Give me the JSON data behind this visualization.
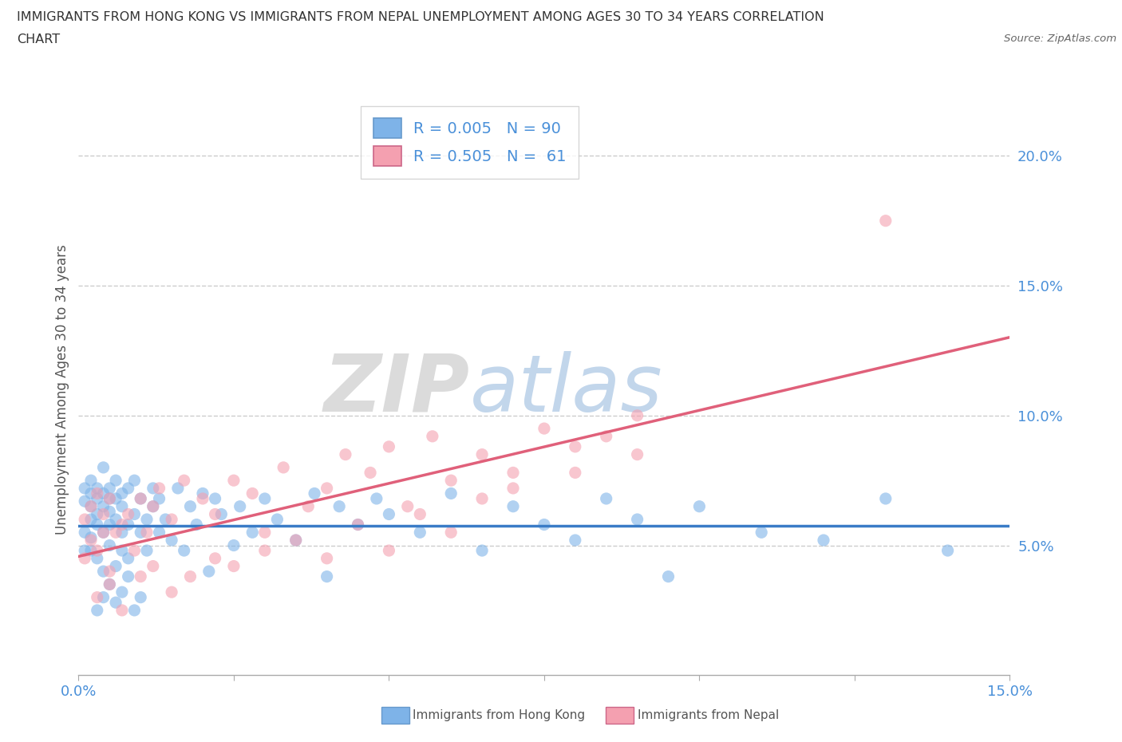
{
  "title_line1": "IMMIGRANTS FROM HONG KONG VS IMMIGRANTS FROM NEPAL UNEMPLOYMENT AMONG AGES 30 TO 34 YEARS CORRELATION",
  "title_line2": "CHART",
  "source_text": "Source: ZipAtlas.com",
  "ylabel": "Unemployment Among Ages 30 to 34 years",
  "xlim": [
    0.0,
    0.15
  ],
  "ylim": [
    0.0,
    0.22
  ],
  "yticks": [
    0.05,
    0.1,
    0.15,
    0.2
  ],
  "xtick_positions": [
    0.0,
    0.025,
    0.05,
    0.075,
    0.1,
    0.125,
    0.15
  ],
  "hk_color": "#7eb3e8",
  "nepal_color": "#f4a0b0",
  "hk_line_color": "#3a7cc7",
  "nepal_line_color": "#e0607a",
  "hk_R": 0.005,
  "hk_N": 90,
  "nepal_R": 0.505,
  "nepal_N": 61,
  "watermark_zip": "ZIP",
  "watermark_atlas": "atlas",
  "legend_label_hk": "Immigrants from Hong Kong",
  "legend_label_nepal": "Immigrants from Nepal",
  "hk_scatter_x": [
    0.001,
    0.001,
    0.001,
    0.001,
    0.002,
    0.002,
    0.002,
    0.002,
    0.002,
    0.002,
    0.003,
    0.003,
    0.003,
    0.003,
    0.003,
    0.004,
    0.004,
    0.004,
    0.004,
    0.004,
    0.005,
    0.005,
    0.005,
    0.005,
    0.005,
    0.006,
    0.006,
    0.006,
    0.006,
    0.007,
    0.007,
    0.007,
    0.007,
    0.008,
    0.008,
    0.008,
    0.009,
    0.009,
    0.01,
    0.01,
    0.011,
    0.011,
    0.012,
    0.012,
    0.013,
    0.013,
    0.014,
    0.015,
    0.016,
    0.017,
    0.018,
    0.019,
    0.02,
    0.021,
    0.022,
    0.023,
    0.025,
    0.026,
    0.028,
    0.03,
    0.032,
    0.035,
    0.038,
    0.04,
    0.042,
    0.045,
    0.048,
    0.05,
    0.055,
    0.06,
    0.065,
    0.07,
    0.075,
    0.08,
    0.085,
    0.09,
    0.095,
    0.1,
    0.11,
    0.12,
    0.13,
    0.14,
    0.003,
    0.004,
    0.005,
    0.006,
    0.007,
    0.008,
    0.009,
    0.01
  ],
  "hk_scatter_y": [
    0.067,
    0.055,
    0.048,
    0.072,
    0.06,
    0.075,
    0.053,
    0.065,
    0.048,
    0.07,
    0.068,
    0.072,
    0.058,
    0.045,
    0.062,
    0.055,
    0.07,
    0.065,
    0.04,
    0.08,
    0.063,
    0.05,
    0.072,
    0.058,
    0.068,
    0.06,
    0.075,
    0.042,
    0.068,
    0.055,
    0.065,
    0.048,
    0.07,
    0.058,
    0.072,
    0.045,
    0.062,
    0.075,
    0.055,
    0.068,
    0.06,
    0.048,
    0.072,
    0.065,
    0.055,
    0.068,
    0.06,
    0.052,
    0.072,
    0.048,
    0.065,
    0.058,
    0.07,
    0.04,
    0.068,
    0.062,
    0.05,
    0.065,
    0.055,
    0.068,
    0.06,
    0.052,
    0.07,
    0.038,
    0.065,
    0.058,
    0.068,
    0.062,
    0.055,
    0.07,
    0.048,
    0.065,
    0.058,
    0.052,
    0.068,
    0.06,
    0.038,
    0.065,
    0.055,
    0.052,
    0.068,
    0.048,
    0.025,
    0.03,
    0.035,
    0.028,
    0.032,
    0.038,
    0.025,
    0.03
  ],
  "nepal_scatter_x": [
    0.001,
    0.001,
    0.002,
    0.002,
    0.003,
    0.003,
    0.004,
    0.004,
    0.005,
    0.005,
    0.006,
    0.007,
    0.008,
    0.009,
    0.01,
    0.011,
    0.012,
    0.013,
    0.015,
    0.017,
    0.02,
    0.022,
    0.025,
    0.028,
    0.03,
    0.033,
    0.037,
    0.04,
    0.043,
    0.047,
    0.05,
    0.053,
    0.057,
    0.06,
    0.065,
    0.07,
    0.075,
    0.08,
    0.085,
    0.09,
    0.003,
    0.005,
    0.007,
    0.01,
    0.012,
    0.015,
    0.018,
    0.022,
    0.025,
    0.03,
    0.035,
    0.04,
    0.045,
    0.05,
    0.055,
    0.06,
    0.065,
    0.07,
    0.08,
    0.09,
    0.13
  ],
  "nepal_scatter_y": [
    0.045,
    0.06,
    0.052,
    0.065,
    0.048,
    0.07,
    0.055,
    0.062,
    0.04,
    0.068,
    0.055,
    0.058,
    0.062,
    0.048,
    0.068,
    0.055,
    0.065,
    0.072,
    0.06,
    0.075,
    0.068,
    0.062,
    0.075,
    0.07,
    0.055,
    0.08,
    0.065,
    0.072,
    0.085,
    0.078,
    0.088,
    0.065,
    0.092,
    0.075,
    0.085,
    0.078,
    0.095,
    0.088,
    0.092,
    0.1,
    0.03,
    0.035,
    0.025,
    0.038,
    0.042,
    0.032,
    0.038,
    0.045,
    0.042,
    0.048,
    0.052,
    0.045,
    0.058,
    0.048,
    0.062,
    0.055,
    0.068,
    0.072,
    0.078,
    0.085,
    0.175
  ]
}
